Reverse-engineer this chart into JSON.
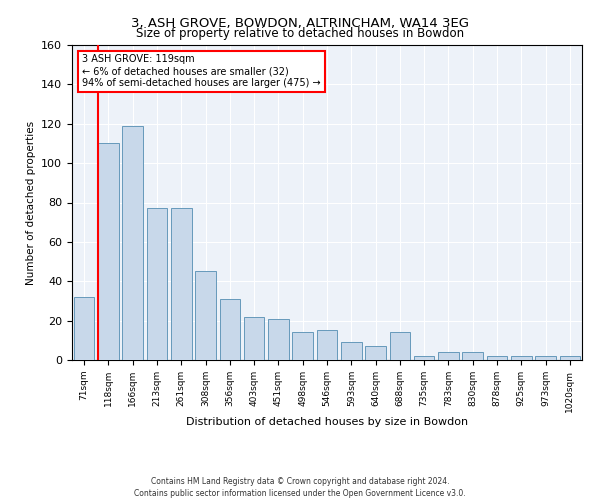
{
  "title": "3, ASH GROVE, BOWDON, ALTRINCHAM, WA14 3EG",
  "subtitle": "Size of property relative to detached houses in Bowdon",
  "xlabel": "Distribution of detached houses by size in Bowdon",
  "ylabel": "Number of detached properties",
  "bar_color": "#c8d8ea",
  "bar_edge_color": "#6699bb",
  "categories": [
    "71sqm",
    "118sqm",
    "166sqm",
    "213sqm",
    "261sqm",
    "308sqm",
    "356sqm",
    "403sqm",
    "451sqm",
    "498sqm",
    "546sqm",
    "593sqm",
    "640sqm",
    "688sqm",
    "735sqm",
    "783sqm",
    "830sqm",
    "878sqm",
    "925sqm",
    "973sqm",
    "1020sqm"
  ],
  "values": [
    32,
    110,
    119,
    77,
    77,
    45,
    31,
    22,
    21,
    14,
    15,
    9,
    7,
    14,
    2,
    4,
    4,
    2,
    2,
    2,
    2
  ],
  "ylim": [
    0,
    160
  ],
  "yticks": [
    0,
    20,
    40,
    60,
    80,
    100,
    120,
    140,
    160
  ],
  "property_label": "3 ASH GROVE: 119sqm",
  "annotation_line1": "← 6% of detached houses are smaller (32)",
  "annotation_line2": "94% of semi-detached houses are larger (475) →",
  "red_line_bin": 1,
  "background_color": "#edf2f9",
  "grid_color": "#ffffff",
  "footer_line1": "Contains HM Land Registry data © Crown copyright and database right 2024.",
  "footer_line2": "Contains public sector information licensed under the Open Government Licence v3.0."
}
